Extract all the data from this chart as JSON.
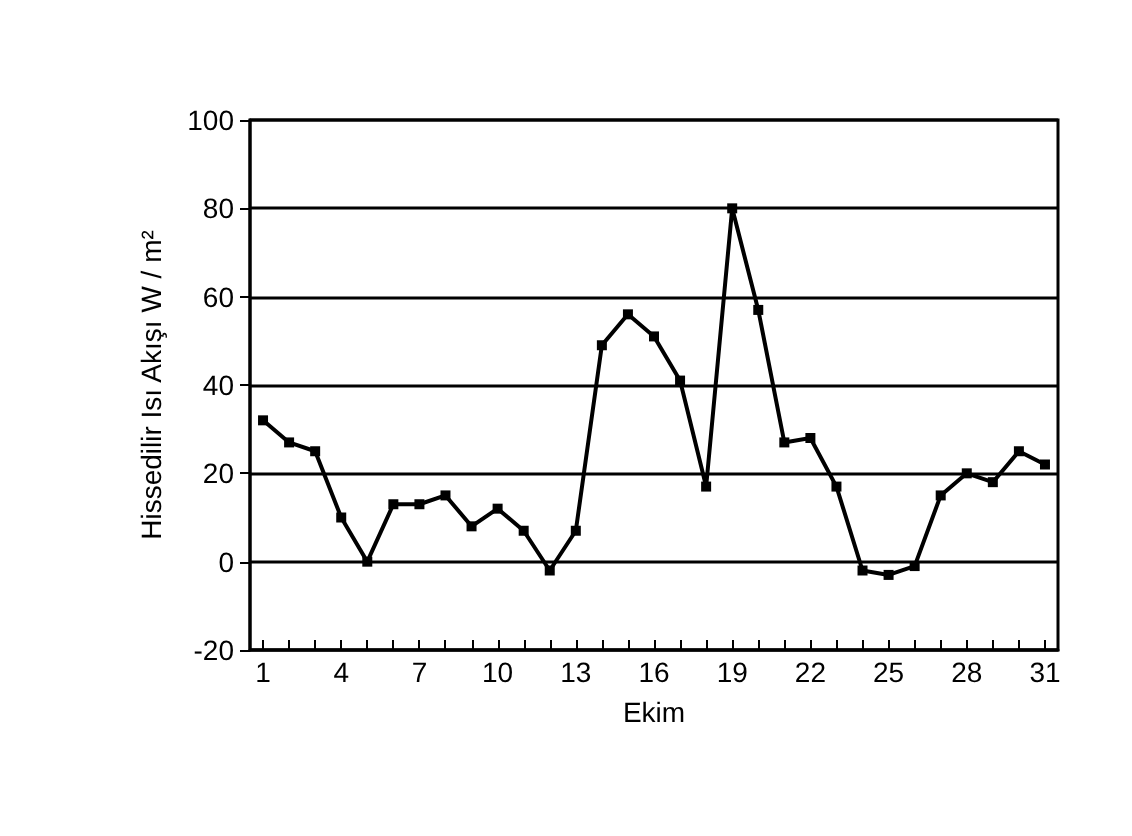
{
  "chart_data": {
    "type": "line",
    "xlabel": "Ekim",
    "ylabel": "Hissedilir Isı Akışı W / m²",
    "categories": [
      "1",
      null,
      null,
      "4",
      null,
      null,
      "7",
      null,
      null,
      "10",
      null,
      null,
      "13",
      null,
      null,
      "16",
      null,
      null,
      "19",
      null,
      null,
      "22",
      null,
      null,
      "25",
      null,
      null,
      "28",
      null,
      null,
      "31"
    ],
    "series": [
      {
        "color": "#000000",
        "values": [
          32,
          27,
          25,
          10,
          0,
          13,
          13,
          15,
          8,
          12,
          7,
          -2,
          7,
          49,
          56,
          51,
          41,
          17,
          80,
          57,
          27,
          28,
          17,
          -2,
          -3,
          -1,
          15,
          20,
          18,
          25,
          22
        ]
      }
    ],
    "ylim": [
      -20,
      100
    ],
    "yticks": [
      -20,
      0,
      20,
      40,
      60,
      80,
      100
    ],
    "grid": "y",
    "marker": "square",
    "line_style": "solid"
  }
}
